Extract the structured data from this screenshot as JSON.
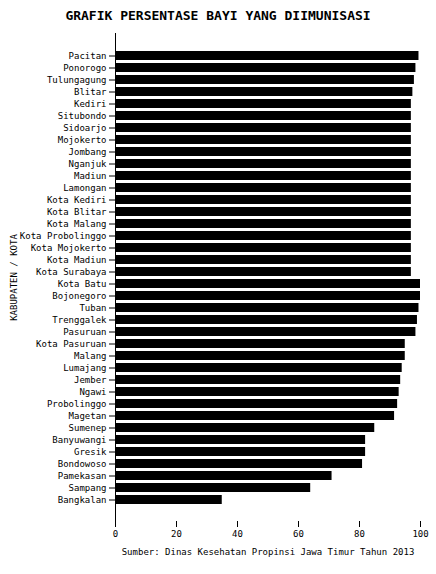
{
  "chart_data": {
    "type": "bar",
    "orientation": "horizontal",
    "title": "GRAFIK PERSENTASE BAYI YANG DIIMUNISASI",
    "xlabel": "Sumber: Dinas Kesehatan Propinsi Jawa Timur Tahun 2013",
    "ylabel": "KABUPATEN / KOTA",
    "categories": [
      "Pacitan",
      "Ponorogo",
      "Tulungagung",
      "Blitar",
      "Kediri",
      "Situbondo",
      "Sidoarjo",
      "Mojokerto",
      "Jombang",
      "Nganjuk",
      "Madiun",
      "Lamongan",
      "Kota Kediri",
      "Kota Blitar",
      "Kota Malang",
      "Kota Probolinggo",
      "Kota Mojokerto",
      "Kota Madiun",
      "Kota Surabaya",
      "Kota Batu",
      "Bojonegoro",
      "Tuban",
      "Trenggalek",
      "Pasuruan",
      "Kota Pasuruan",
      "Malang",
      "Lumajang",
      "Jember",
      "Ngawi",
      "Probolinggo",
      "Magetan",
      "Sumenep",
      "Banyuwangi",
      "Gresik",
      "Bondowoso",
      "Pamekasan",
      "Sampang",
      "Bangkalan"
    ],
    "values": [
      99.5,
      98.5,
      98.0,
      97.5,
      97.0,
      97.0,
      97.0,
      97.0,
      97.0,
      97.0,
      97.0,
      97.0,
      97.0,
      97.0,
      97.0,
      97.0,
      97.0,
      97.0,
      97.0,
      100.0,
      100.0,
      99.5,
      99.0,
      98.5,
      95.0,
      95.0,
      94.0,
      93.5,
      93.0,
      92.5,
      91.5,
      85.0,
      82.0,
      82.0,
      81.0,
      71.0,
      64.0,
      35.0
    ],
    "color": "#000000",
    "xlim": [
      0,
      100
    ],
    "xticks": [
      0,
      20,
      40,
      60,
      80,
      100
    ]
  }
}
